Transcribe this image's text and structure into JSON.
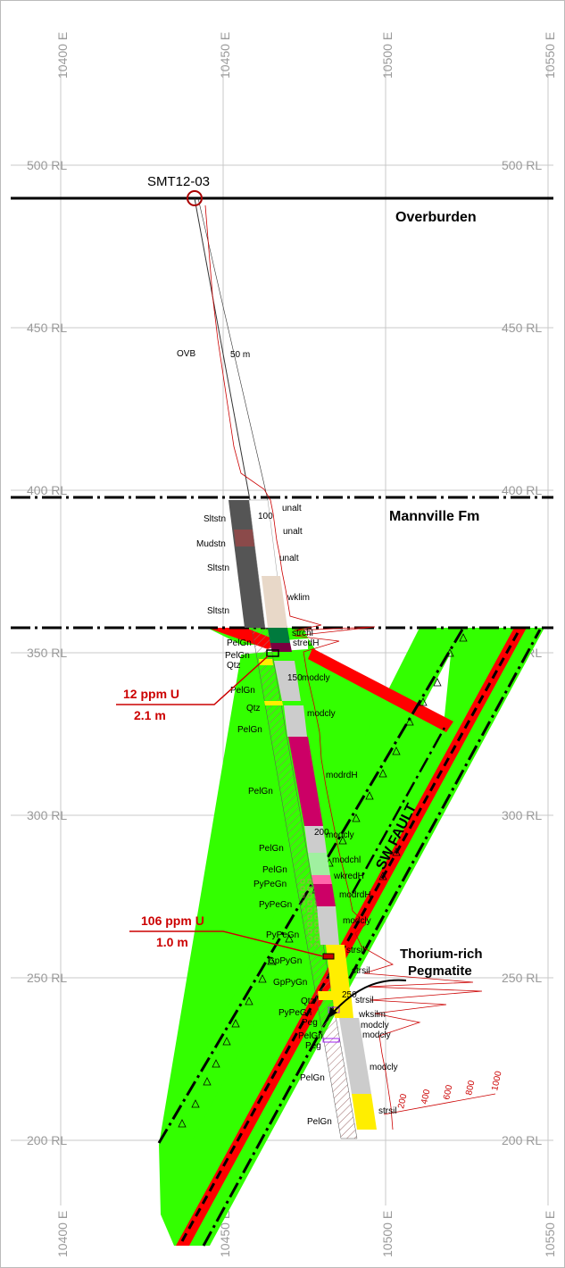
{
  "grid": {
    "easting_labels": [
      "10400 E",
      "10450 E",
      "10500 E",
      "10550 E"
    ],
    "rl_labels": [
      "500 RL",
      "450 RL",
      "400 RL",
      "350 RL",
      "300 RL",
      "250 RL",
      "200 RL"
    ]
  },
  "drillhole": {
    "id": "SMT12-03",
    "depth_ticks": [
      "50 m",
      "100",
      "150",
      "200",
      "250"
    ]
  },
  "formations": {
    "overburden": "Overburden",
    "mannville": "Mannville Fm"
  },
  "fault": {
    "label": "SW FAULT"
  },
  "lithology_labels": [
    "OVB",
    "Sltstn",
    "Mudstn",
    "Sltstn",
    "Sltstn",
    "PelGn",
    "PelGn",
    "Qtz",
    "PelGn",
    "Qtz",
    "PelGn",
    "PelGn",
    "PelGn",
    "PelGn",
    "PyPeGn",
    "PyPeGn",
    "PyPeGn",
    "GpPyGn",
    "GpPyGn",
    "Qtz",
    "PyPeGn",
    "Peg",
    "PelGn",
    "Peg",
    "PelGn",
    "PelGn"
  ],
  "alteration_labels": [
    "unalt",
    "unalt",
    "unalt",
    "wklim",
    "strchl",
    "stredH",
    "modcly",
    "modcly",
    "modrdH",
    "modcly",
    "modchl",
    "wkredH",
    "modrdH",
    "modcly",
    "strsil",
    "strsil",
    "strsil",
    "wksilm",
    "modcly",
    "modcly",
    "modcly",
    "strsil"
  ],
  "callouts": {
    "upper_grade": "12 ppm U",
    "upper_width": "2.1 m",
    "lower_grade": "106 ppm U",
    "lower_width": "1.0 m",
    "pegmatite_line1": "Thorium-rich",
    "pegmatite_line2": "Pegmatite"
  },
  "gamma_scale": [
    "200",
    "400",
    "600",
    "800",
    "1000"
  ],
  "colors": {
    "fault_zone": "#33ff00",
    "fault_core": "#ff0000",
    "formation_line": "#000000",
    "gamma_trace": "#cc0000",
    "callout": "#cc0000"
  }
}
